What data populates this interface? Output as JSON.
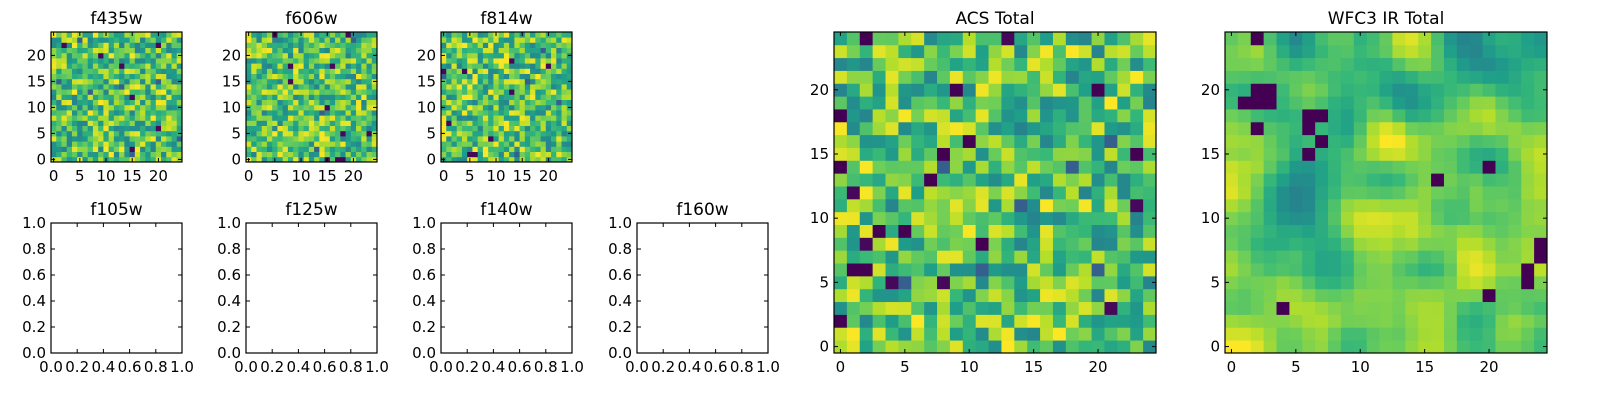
{
  "figure": {
    "description_colormap": "viridis",
    "colors": {
      "viridis_stops": [
        "#440154",
        "#482878",
        "#3e4989",
        "#31688e",
        "#26828e",
        "#1f9e89",
        "#35b779",
        "#6ece58",
        "#b5de2b",
        "#fde725"
      ],
      "axis": "#000000",
      "background": "#ffffff"
    }
  },
  "chart_data": [
    {
      "id": "f435w",
      "type": "heatmap",
      "title": "f435w",
      "grid_size": 25,
      "xlim": [
        0,
        24
      ],
      "ylim": [
        0,
        24
      ],
      "xticks": [
        "0",
        "5",
        "10",
        "15",
        "20"
      ],
      "xtick_values": [
        0,
        5,
        10,
        15,
        20
      ],
      "yticks": [
        "0",
        "5",
        "10",
        "15",
        "20"
      ],
      "ytick_values": [
        0,
        5,
        10,
        15,
        20
      ],
      "value_range": [
        0,
        1
      ],
      "noise_seed": 435,
      "noise_smooth": 0
    },
    {
      "id": "f606w",
      "type": "heatmap",
      "title": "f606w",
      "grid_size": 25,
      "xlim": [
        0,
        24
      ],
      "ylim": [
        0,
        24
      ],
      "xticks": [
        "0",
        "5",
        "10",
        "15",
        "20"
      ],
      "xtick_values": [
        0,
        5,
        10,
        15,
        20
      ],
      "yticks": [
        "0",
        "5",
        "10",
        "15",
        "20"
      ],
      "ytick_values": [
        0,
        5,
        10,
        15,
        20
      ],
      "value_range": [
        0,
        1
      ],
      "noise_seed": 606,
      "noise_smooth": 0
    },
    {
      "id": "f814w",
      "type": "heatmap",
      "title": "f814w",
      "grid_size": 25,
      "xlim": [
        0,
        24
      ],
      "ylim": [
        0,
        24
      ],
      "xticks": [
        "0",
        "5",
        "10",
        "15",
        "20"
      ],
      "xtick_values": [
        0,
        5,
        10,
        15,
        20
      ],
      "yticks": [
        "0",
        "5",
        "10",
        "15",
        "20"
      ],
      "ytick_values": [
        0,
        5,
        10,
        15,
        20
      ],
      "value_range": [
        0,
        1
      ],
      "noise_seed": 814,
      "noise_smooth": 0
    },
    {
      "id": "f105w",
      "type": "empty",
      "title": "f105w",
      "xlim": [
        0,
        1
      ],
      "ylim": [
        0,
        1
      ],
      "xticks": [
        "0.0",
        "0.2",
        "0.4",
        "0.6",
        "0.8",
        "1.0"
      ],
      "xtick_values": [
        0,
        0.2,
        0.4,
        0.6,
        0.8,
        1.0
      ],
      "yticks": [
        "0.0",
        "0.2",
        "0.4",
        "0.6",
        "0.8",
        "1.0"
      ],
      "ytick_values": [
        0,
        0.2,
        0.4,
        0.6,
        0.8,
        1.0
      ]
    },
    {
      "id": "f125w",
      "type": "empty",
      "title": "f125w",
      "xlim": [
        0,
        1
      ],
      "ylim": [
        0,
        1
      ],
      "xticks": [
        "0.0",
        "0.2",
        "0.4",
        "0.6",
        "0.8",
        "1.0"
      ],
      "xtick_values": [
        0,
        0.2,
        0.4,
        0.6,
        0.8,
        1.0
      ],
      "yticks": [
        "0.0",
        "0.2",
        "0.4",
        "0.6",
        "0.8",
        "1.0"
      ],
      "ytick_values": [
        0,
        0.2,
        0.4,
        0.6,
        0.8,
        1.0
      ]
    },
    {
      "id": "f140w",
      "type": "empty",
      "title": "f140w",
      "xlim": [
        0,
        1
      ],
      "ylim": [
        0,
        1
      ],
      "xticks": [
        "0.0",
        "0.2",
        "0.4",
        "0.6",
        "0.8",
        "1.0"
      ],
      "xtick_values": [
        0,
        0.2,
        0.4,
        0.6,
        0.8,
        1.0
      ],
      "yticks": [
        "0.0",
        "0.2",
        "0.4",
        "0.6",
        "0.8",
        "1.0"
      ],
      "ytick_values": [
        0,
        0.2,
        0.4,
        0.6,
        0.8,
        1.0
      ]
    },
    {
      "id": "f160w",
      "type": "empty",
      "title": "f160w",
      "xlim": [
        0,
        1
      ],
      "ylim": [
        0,
        1
      ],
      "xticks": [
        "0.0",
        "0.2",
        "0.4",
        "0.6",
        "0.8",
        "1.0"
      ],
      "xtick_values": [
        0,
        0.2,
        0.4,
        0.6,
        0.8,
        1.0
      ],
      "yticks": [
        "0.0",
        "0.2",
        "0.4",
        "0.6",
        "0.8",
        "1.0"
      ],
      "ytick_values": [
        0,
        0.2,
        0.4,
        0.6,
        0.8,
        1.0
      ]
    },
    {
      "id": "acs-total",
      "type": "heatmap",
      "title": "ACS Total",
      "grid_size": 25,
      "xlim": [
        0,
        24
      ],
      "ylim": [
        0,
        24
      ],
      "xticks": [
        "0",
        "5",
        "10",
        "15",
        "20"
      ],
      "xtick_values": [
        0,
        5,
        10,
        15,
        20
      ],
      "yticks": [
        "0",
        "5",
        "10",
        "15",
        "20"
      ],
      "ytick_values": [
        0,
        5,
        10,
        15,
        20
      ],
      "value_range": [
        0,
        1
      ],
      "noise_seed": 1111,
      "noise_smooth": 0,
      "dark_cells": [
        [
          2,
          24
        ],
        [
          9,
          20
        ],
        [
          3,
          9
        ],
        [
          5,
          9
        ],
        [
          10,
          16
        ],
        [
          11,
          8
        ],
        [
          0,
          18
        ],
        [
          2,
          6
        ],
        [
          20,
          20
        ],
        [
          7,
          13
        ],
        [
          0,
          2
        ],
        [
          0,
          14
        ],
        [
          23,
          15
        ],
        [
          1,
          6
        ],
        [
          8,
          15
        ],
        [
          14,
          11
        ]
      ]
    },
    {
      "id": "wfc3-ir-total",
      "type": "heatmap",
      "title": "WFC3 IR Total",
      "grid_size": 25,
      "xlim": [
        0,
        24
      ],
      "ylim": [
        0,
        24
      ],
      "xticks": [
        "0",
        "5",
        "10",
        "15",
        "20"
      ],
      "xtick_values": [
        0,
        5,
        10,
        15,
        20
      ],
      "yticks": [
        "0",
        "5",
        "10",
        "15",
        "20"
      ],
      "ytick_values": [
        0,
        5,
        10,
        15,
        20
      ],
      "value_range": [
        0,
        1
      ],
      "noise_seed": 2222,
      "noise_smooth": 2,
      "dark_cells": [
        [
          23,
          5
        ],
        [
          23,
          6
        ],
        [
          24,
          7
        ],
        [
          24,
          8
        ],
        [
          16,
          13
        ],
        [
          20,
          14
        ],
        [
          6,
          15
        ],
        [
          7,
          16
        ],
        [
          7,
          18
        ],
        [
          6,
          18
        ],
        [
          6,
          17
        ],
        [
          3,
          19
        ],
        [
          2,
          20
        ],
        [
          3,
          20
        ],
        [
          1,
          19
        ],
        [
          2,
          19
        ],
        [
          2,
          24
        ],
        [
          2,
          17
        ],
        [
          20,
          4
        ],
        [
          4,
          3
        ]
      ]
    }
  ]
}
